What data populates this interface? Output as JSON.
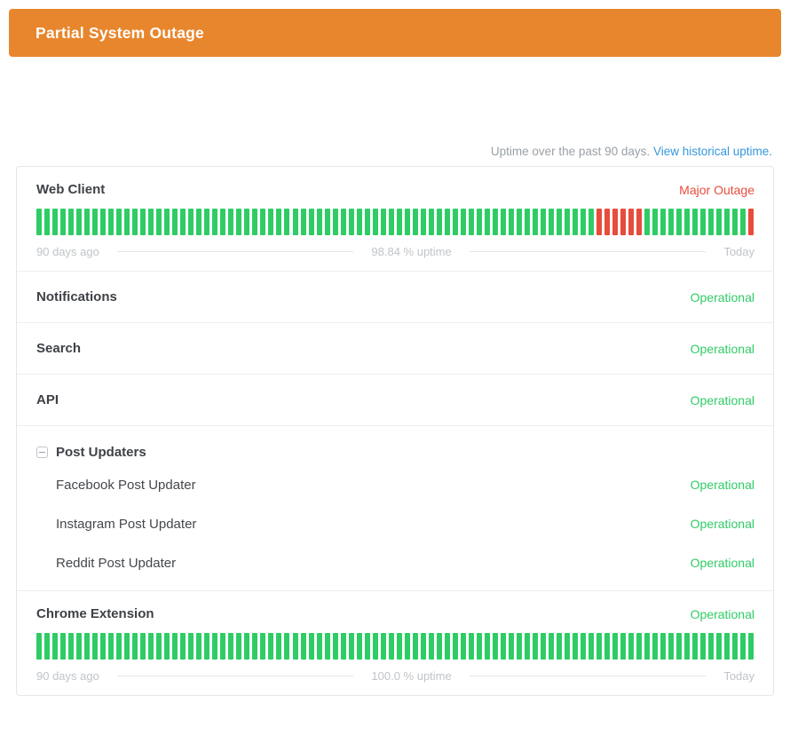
{
  "banner": {
    "title": "Partial System Outage"
  },
  "uptime_note": {
    "text": "Uptime over the past 90 days.",
    "link_text": "View historical uptime."
  },
  "chart_legend": {
    "left": "90 days ago",
    "right": "Today"
  },
  "components": [
    {
      "name": "Web Client",
      "status": "Major Outage",
      "status_type": "major_outage",
      "chart": {
        "days": 90,
        "uptime_label": "98.84 % uptime",
        "segments": [
          {
            "status": "operational",
            "count": 70
          },
          {
            "status": "major_outage",
            "count": 6
          },
          {
            "status": "operational",
            "count": 13
          },
          {
            "status": "major_outage",
            "count": 1
          }
        ]
      }
    },
    {
      "name": "Notifications",
      "status": "Operational",
      "status_type": "operational"
    },
    {
      "name": "Search",
      "status": "Operational",
      "status_type": "operational"
    },
    {
      "name": "API",
      "status": "Operational",
      "status_type": "operational"
    },
    {
      "name": "Post Updaters",
      "is_group": true,
      "children": [
        {
          "name": "Facebook Post Updater",
          "status": "Operational",
          "status_type": "operational"
        },
        {
          "name": "Instagram Post Updater",
          "status": "Operational",
          "status_type": "operational"
        },
        {
          "name": "Reddit Post Updater",
          "status": "Operational",
          "status_type": "operational"
        }
      ]
    },
    {
      "name": "Chrome Extension",
      "status": "Operational",
      "status_type": "operational",
      "chart": {
        "days": 90,
        "uptime_label": "100.0 % uptime",
        "segments": [
          {
            "status": "operational",
            "count": 90
          }
        ]
      }
    }
  ],
  "colors": {
    "banner_bg": "#e8862d",
    "operational": "#2fcc66",
    "major_outage": "#e74c3c",
    "link": "#3498db"
  }
}
